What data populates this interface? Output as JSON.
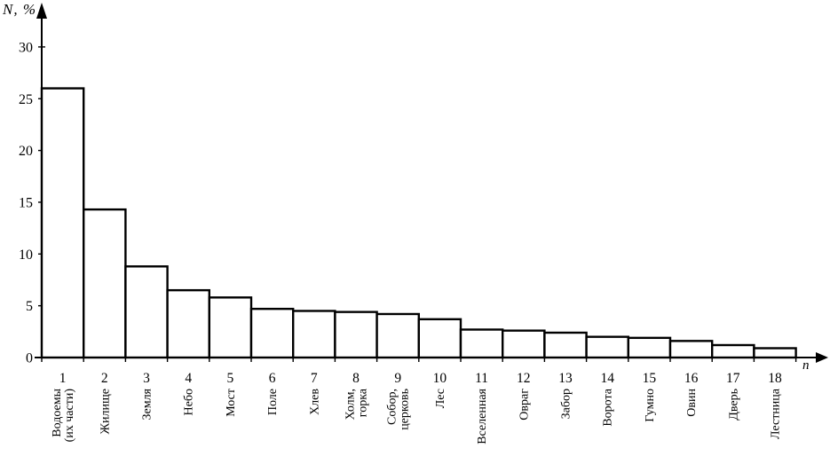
{
  "chart_data": {
    "type": "bar",
    "title": "",
    "xlabel": "n",
    "ylabel": "N, %",
    "x": [
      1,
      2,
      3,
      4,
      5,
      6,
      7,
      8,
      9,
      10,
      11,
      12,
      13,
      14,
      15,
      16,
      17,
      18
    ],
    "categories": [
      "Водоемы\n(их части)",
      "Жилище",
      "Земля",
      "Небо",
      "Мост",
      "Поле",
      "Хлев",
      "Холм,\nгорка",
      "Собор,\nцерковь",
      "Лес",
      "Вселенная",
      "Овраг",
      "Забор",
      "Ворота",
      "Гумно",
      "Овин",
      "Дверь",
      "Лестница"
    ],
    "values": [
      26.0,
      14.3,
      8.8,
      6.5,
      5.8,
      4.7,
      4.5,
      4.4,
      4.2,
      3.7,
      2.7,
      2.6,
      2.4,
      2.0,
      1.9,
      1.6,
      1.2,
      0.9
    ],
    "ylim": [
      0,
      32
    ],
    "yticks": [
      0,
      5,
      10,
      15,
      20,
      25,
      30
    ],
    "grid": false,
    "legend": "none",
    "bar_fill": "#ffffff",
    "bar_stroke": "#000000",
    "axis_color": "#000000"
  }
}
